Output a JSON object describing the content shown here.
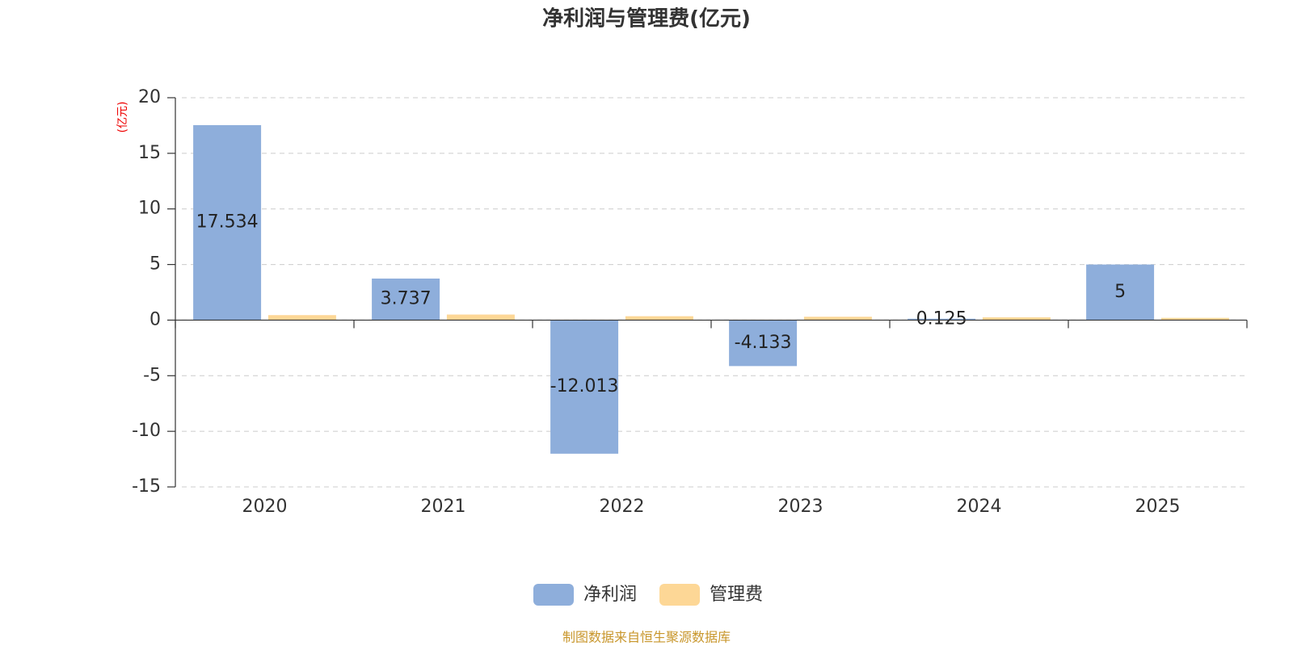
{
  "chart_data": {
    "type": "bar",
    "title": "净利润与管理费(亿元)",
    "y_unit": "(亿元)",
    "source": "制图数据来自恒生聚源数据库",
    "categories": [
      "2020",
      "2021",
      "2022",
      "2023",
      "2024",
      "2025"
    ],
    "series": [
      {
        "name": "净利润",
        "color": "#8eaedb",
        "values": [
          17.534,
          3.737,
          -12.013,
          -4.133,
          0.125,
          5
        ],
        "labels": true
      },
      {
        "name": "管理费",
        "color": "#fdd796",
        "values": [
          0.45,
          0.5,
          0.35,
          0.3,
          0.25,
          0.2
        ],
        "labels": false
      }
    ],
    "ylim": [
      -15,
      20
    ],
    "yticks": [
      -15,
      -10,
      -5,
      0,
      5,
      10,
      15,
      20
    ],
    "grid": true
  }
}
